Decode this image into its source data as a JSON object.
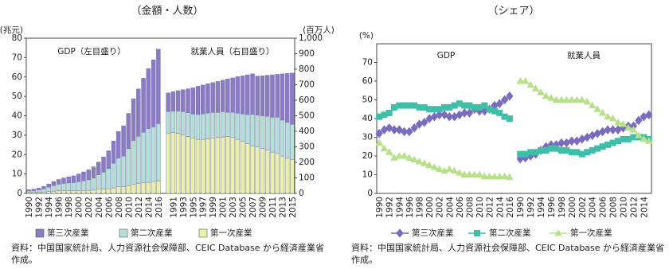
{
  "chart_data": [
    {
      "type": "bar",
      "title": "（金額・人数）",
      "y_label": "(兆元)",
      "y2_label": "(百万人)",
      "ylim": [
        0,
        80
      ],
      "yticks": [
        0,
        10,
        20,
        30,
        40,
        50,
        60,
        70,
        80
      ],
      "y2lim": [
        0,
        1000
      ],
      "y2ticks": [
        0,
        100,
        200,
        300,
        400,
        500,
        600,
        700,
        800,
        900,
        {
          "value": 1000,
          "label": "1,000"
        }
      ],
      "series": [
        {
          "name": "第三次産業",
          "color": "#8a7cc2"
        },
        {
          "name": "第二次産業",
          "color": "#b5e0d6"
        },
        {
          "name": "第一次産業",
          "color": "#eaf2a8"
        }
      ],
      "groups": [
        {
          "label": "GDP（左目盛り）",
          "categories": [
            "1990",
            null,
            "1992",
            null,
            "1994",
            null,
            "1996",
            null,
            "1998",
            null,
            "2000",
            null,
            "2002",
            null,
            "2004",
            null,
            "2006",
            null,
            "2008",
            null,
            "2010",
            null,
            "2012",
            null,
            "2014",
            null,
            "2016"
          ],
          "series": [
            {
              "values": [
                0.59,
                0.76,
                0.97,
                1.25,
                1.67,
                2.06,
                2.42,
                2.78,
                3.14,
                3.48,
                3.98,
                4.58,
                5.16,
                5.81,
                6.65,
                7.73,
                9.12,
                11.46,
                13.65,
                15.57,
                18.12,
                21.48,
                24.38,
                27.74,
                30.9,
                34.6,
                38.4
              ]
            },
            {
              "values": [
                0.77,
                0.91,
                1.17,
                1.64,
                2.24,
                2.87,
                3.38,
                3.75,
                3.9,
                4.1,
                4.56,
                4.95,
                5.39,
                6.24,
                7.39,
                8.76,
                10.42,
                12.68,
                14.9,
                15.76,
                19.15,
                22.71,
                24.47,
                26.16,
                27.76,
                28.2,
                29.6
              ]
            },
            {
              "values": [
                0.51,
                0.53,
                0.58,
                0.68,
                0.95,
                1.2,
                1.38,
                1.44,
                1.48,
                1.48,
                1.49,
                1.56,
                1.62,
                1.69,
                2.14,
                2.24,
                2.4,
                2.86,
                3.37,
                3.52,
                3.94,
                4.6,
                5.01,
                5.4,
                5.7,
                6.09,
                6.37
              ]
            }
          ]
        },
        {
          "label": "就業人員（右目盛り）",
          "axis": "y2",
          "categories": [
            null,
            "1991",
            null,
            "1993",
            null,
            "1995",
            null,
            "1997",
            null,
            "1999",
            null,
            "2001",
            null,
            "2003",
            null,
            "2005",
            null,
            "2007",
            null,
            "2009",
            null,
            "2011",
            null,
            "2013",
            null,
            "2015"
          ],
          "series": [
            {
              "values": [
                119,
                124,
                131,
                141,
                155,
                168,
                180,
                185,
                188,
                192,
                199,
                203,
                214,
                221,
                235,
                246,
                256,
                261,
                252,
                258,
                264,
                273,
                276,
                298,
                315,
                330
              ]
            },
            {
              "values": [
                139,
                140,
                144,
                150,
                153,
                157,
                162,
                165,
                166,
                164,
                162,
                163,
                157,
                161,
                169,
                178,
                189,
                202,
                205,
                211,
                218,
                225,
                233,
                231,
                230,
                226
              ]
            },
            {
              "values": [
                389,
                391,
                387,
                377,
                366,
                355,
                348,
                348,
                352,
                358,
                360,
                364,
                366,
                362,
                348,
                334,
                319,
                307,
                299,
                289,
                279,
                266,
                258,
                241,
                228,
                219
              ]
            }
          ]
        }
      ],
      "note": "資料：中国国家統計局、人力資源社会保障部、CEIC Database から経済産業省作成。"
    },
    {
      "type": "line",
      "title": "（シェア）",
      "y_label": "(%)",
      "ylim": [
        0,
        80
      ],
      "yticks": [
        0,
        10,
        20,
        30,
        40,
        50,
        60,
        70
      ],
      "series": [
        {
          "name": "第三次産業",
          "color": "#7a6bbf",
          "marker": "diamond"
        },
        {
          "name": "第二次産業",
          "color": "#3fbfa8",
          "marker": "square"
        },
        {
          "name": "第一次産業",
          "color": "#b8e08a",
          "marker": "triangle"
        }
      ],
      "groups": [
        {
          "label": "GDP",
          "categories": [
            "1990",
            null,
            "1992",
            null,
            "1994",
            null,
            "1996",
            null,
            "1998",
            null,
            "2000",
            null,
            "2002",
            null,
            "2004",
            null,
            "2006",
            null,
            "2008",
            null,
            "2010",
            null,
            "2012",
            null,
            "2014",
            null,
            "2016"
          ],
          "series": [
            {
              "values": [
                32,
                34,
                35,
                34,
                34,
                33,
                33,
                35,
                37,
                38,
                40,
                41,
                42,
                42,
                41,
                41,
                42,
                43,
                43,
                45,
                44,
                44,
                45,
                47,
                48,
                50,
                52
              ]
            },
            {
              "values": [
                41,
                42,
                43,
                46,
                47,
                47,
                47,
                47,
                46,
                46,
                45,
                45,
                45,
                46,
                46,
                47,
                48,
                47,
                47,
                46,
                46,
                47,
                45,
                44,
                43,
                41,
                40
              ]
            },
            {
              "values": [
                27,
                24,
                22,
                19,
                20,
                20,
                19,
                18,
                17,
                16,
                15,
                14,
                13,
                12,
                13,
                12,
                11,
                10,
                10,
                10,
                10,
                9,
                9,
                9,
                9,
                9,
                8.6
              ]
            }
          ]
        },
        {
          "label": "就業人員",
          "categories": [
            "1990",
            null,
            "1992",
            null,
            "1994",
            null,
            "1996",
            null,
            "1998",
            null,
            "2000",
            null,
            "2002",
            null,
            "2004",
            null,
            "2006",
            null,
            "2008",
            null,
            "2010",
            null,
            "2012",
            null,
            "2014",
            null
          ],
          "series": [
            {
              "values": [
                18.5,
                19,
                20,
                21,
                23,
                25,
                26,
                26,
                27,
                27,
                28,
                28,
                29,
                30,
                31,
                32,
                33,
                34,
                34,
                34,
                35,
                36,
                36,
                39,
                41,
                42
              ]
            },
            {
              "values": [
                21,
                21,
                22,
                22,
                23,
                23,
                24,
                24,
                23,
                23,
                22,
                22,
                21,
                22,
                23,
                24,
                25,
                26,
                27,
                28,
                29,
                29,
                30,
                30,
                30,
                29
              ]
            },
            {
              "values": [
                60,
                60,
                58,
                56,
                54,
                52,
                51,
                50,
                50,
                50,
                50,
                50,
                50,
                49,
                47,
                45,
                43,
                41,
                40,
                38,
                37,
                35,
                34,
                31,
                29,
                28
              ]
            }
          ]
        }
      ],
      "note": "資料：中国国家統計局、人力資源社会保障部、CEIC Database から経済産業省作成。"
    }
  ]
}
